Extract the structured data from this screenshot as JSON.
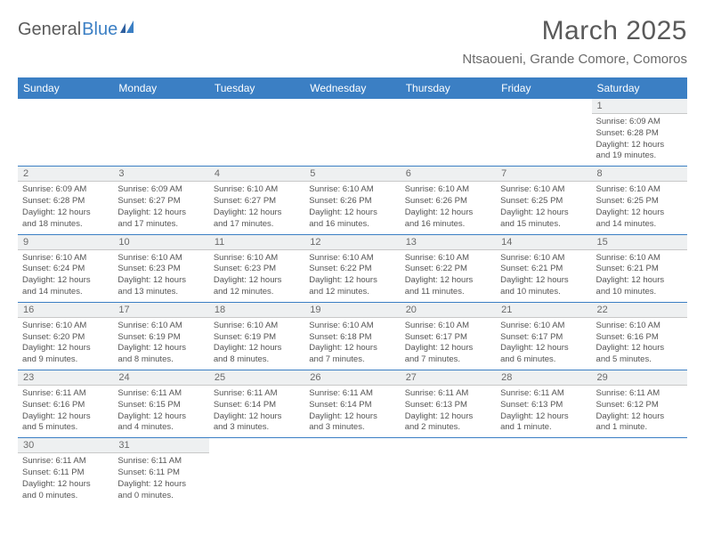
{
  "logo": {
    "text1": "General",
    "text2": "Blue"
  },
  "title": "March 2025",
  "location": "Ntsaoueni, Grande Comore, Comoros",
  "colors": {
    "header_bg": "#3b7fc4",
    "header_text": "#ffffff",
    "daynum_bg": "#eef0f1",
    "daynum_text": "#6b6b6b",
    "cell_border": "#3b7fc4",
    "body_text": "#555555",
    "title_text": "#5a5a5a"
  },
  "weekdays": [
    "Sunday",
    "Monday",
    "Tuesday",
    "Wednesday",
    "Thursday",
    "Friday",
    "Saturday"
  ],
  "weeks": [
    [
      null,
      null,
      null,
      null,
      null,
      null,
      {
        "n": "1",
        "r": "6:09 AM",
        "s": "6:28 PM",
        "d": "12 hours and 19 minutes."
      }
    ],
    [
      {
        "n": "2",
        "r": "6:09 AM",
        "s": "6:28 PM",
        "d": "12 hours and 18 minutes."
      },
      {
        "n": "3",
        "r": "6:09 AM",
        "s": "6:27 PM",
        "d": "12 hours and 17 minutes."
      },
      {
        "n": "4",
        "r": "6:10 AM",
        "s": "6:27 PM",
        "d": "12 hours and 17 minutes."
      },
      {
        "n": "5",
        "r": "6:10 AM",
        "s": "6:26 PM",
        "d": "12 hours and 16 minutes."
      },
      {
        "n": "6",
        "r": "6:10 AM",
        "s": "6:26 PM",
        "d": "12 hours and 16 minutes."
      },
      {
        "n": "7",
        "r": "6:10 AM",
        "s": "6:25 PM",
        "d": "12 hours and 15 minutes."
      },
      {
        "n": "8",
        "r": "6:10 AM",
        "s": "6:25 PM",
        "d": "12 hours and 14 minutes."
      }
    ],
    [
      {
        "n": "9",
        "r": "6:10 AM",
        "s": "6:24 PM",
        "d": "12 hours and 14 minutes."
      },
      {
        "n": "10",
        "r": "6:10 AM",
        "s": "6:23 PM",
        "d": "12 hours and 13 minutes."
      },
      {
        "n": "11",
        "r": "6:10 AM",
        "s": "6:23 PM",
        "d": "12 hours and 12 minutes."
      },
      {
        "n": "12",
        "r": "6:10 AM",
        "s": "6:22 PM",
        "d": "12 hours and 12 minutes."
      },
      {
        "n": "13",
        "r": "6:10 AM",
        "s": "6:22 PM",
        "d": "12 hours and 11 minutes."
      },
      {
        "n": "14",
        "r": "6:10 AM",
        "s": "6:21 PM",
        "d": "12 hours and 10 minutes."
      },
      {
        "n": "15",
        "r": "6:10 AM",
        "s": "6:21 PM",
        "d": "12 hours and 10 minutes."
      }
    ],
    [
      {
        "n": "16",
        "r": "6:10 AM",
        "s": "6:20 PM",
        "d": "12 hours and 9 minutes."
      },
      {
        "n": "17",
        "r": "6:10 AM",
        "s": "6:19 PM",
        "d": "12 hours and 8 minutes."
      },
      {
        "n": "18",
        "r": "6:10 AM",
        "s": "6:19 PM",
        "d": "12 hours and 8 minutes."
      },
      {
        "n": "19",
        "r": "6:10 AM",
        "s": "6:18 PM",
        "d": "12 hours and 7 minutes."
      },
      {
        "n": "20",
        "r": "6:10 AM",
        "s": "6:17 PM",
        "d": "12 hours and 7 minutes."
      },
      {
        "n": "21",
        "r": "6:10 AM",
        "s": "6:17 PM",
        "d": "12 hours and 6 minutes."
      },
      {
        "n": "22",
        "r": "6:10 AM",
        "s": "6:16 PM",
        "d": "12 hours and 5 minutes."
      }
    ],
    [
      {
        "n": "23",
        "r": "6:11 AM",
        "s": "6:16 PM",
        "d": "12 hours and 5 minutes."
      },
      {
        "n": "24",
        "r": "6:11 AM",
        "s": "6:15 PM",
        "d": "12 hours and 4 minutes."
      },
      {
        "n": "25",
        "r": "6:11 AM",
        "s": "6:14 PM",
        "d": "12 hours and 3 minutes."
      },
      {
        "n": "26",
        "r": "6:11 AM",
        "s": "6:14 PM",
        "d": "12 hours and 3 minutes."
      },
      {
        "n": "27",
        "r": "6:11 AM",
        "s": "6:13 PM",
        "d": "12 hours and 2 minutes."
      },
      {
        "n": "28",
        "r": "6:11 AM",
        "s": "6:13 PM",
        "d": "12 hours and 1 minute."
      },
      {
        "n": "29",
        "r": "6:11 AM",
        "s": "6:12 PM",
        "d": "12 hours and 1 minute."
      }
    ],
    [
      {
        "n": "30",
        "r": "6:11 AM",
        "s": "6:11 PM",
        "d": "12 hours and 0 minutes."
      },
      {
        "n": "31",
        "r": "6:11 AM",
        "s": "6:11 PM",
        "d": "12 hours and 0 minutes."
      },
      null,
      null,
      null,
      null,
      null
    ]
  ],
  "labels": {
    "sunrise": "Sunrise: ",
    "sunset": "Sunset: ",
    "daylight": "Daylight: "
  }
}
